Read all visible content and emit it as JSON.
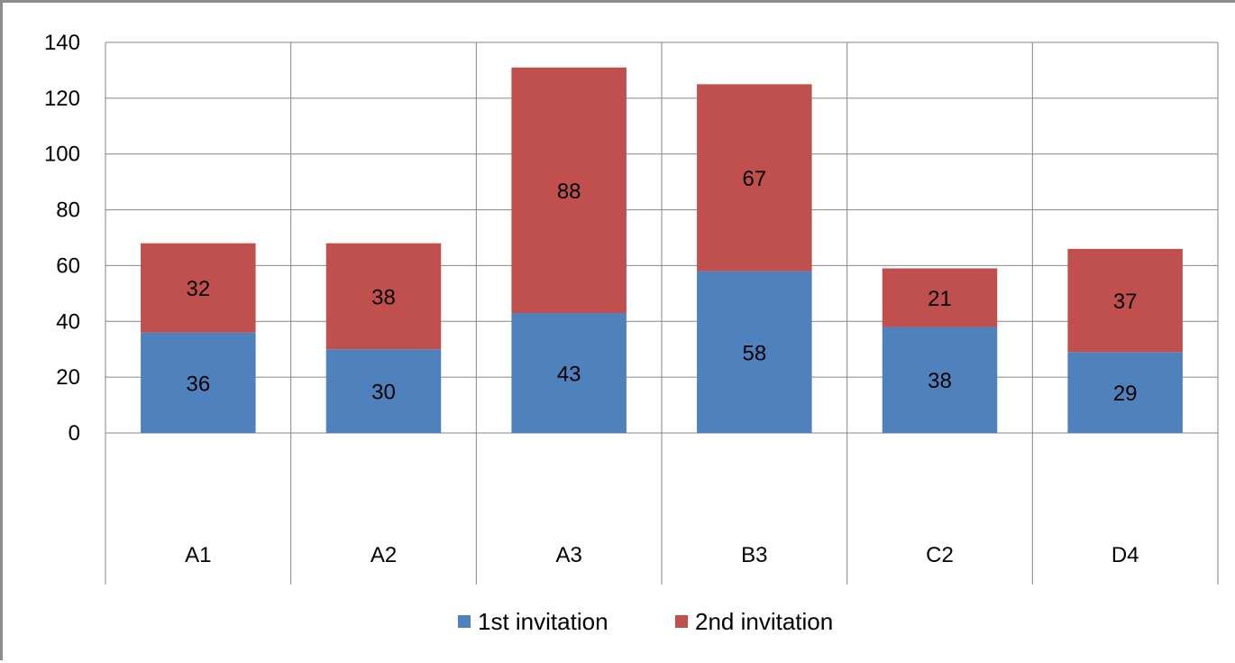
{
  "chart_data": {
    "type": "bar",
    "stacked": true,
    "title": "",
    "xlabel": "",
    "ylabel": "",
    "categories": [
      "A1",
      "A2",
      "A3",
      "B3",
      "C2",
      "D4"
    ],
    "series": [
      {
        "name": "1st invitation",
        "color": "#4f81bd",
        "values": [
          36,
          30,
          43,
          58,
          38,
          29
        ]
      },
      {
        "name": "2nd invitation",
        "color": "#c0504d",
        "values": [
          32,
          38,
          88,
          67,
          21,
          37
        ]
      }
    ],
    "ylim": [
      0,
      140
    ],
    "yticks": [
      0,
      20,
      40,
      60,
      80,
      100,
      120,
      140
    ],
    "grid": true,
    "legend_position": "bottom"
  }
}
